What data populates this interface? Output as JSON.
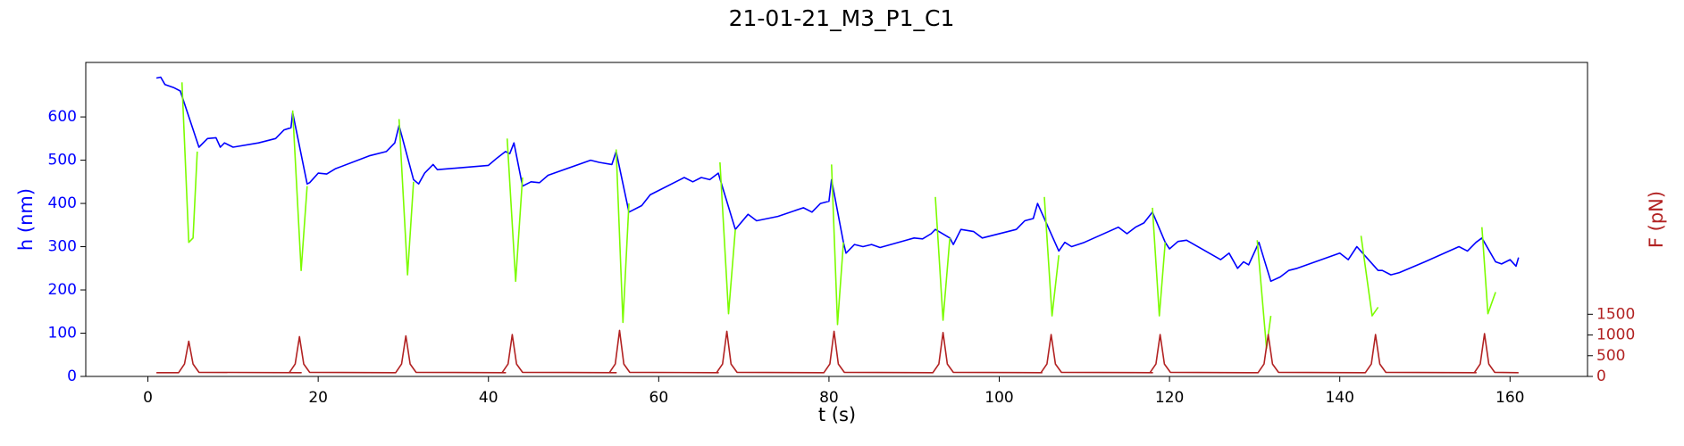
{
  "chart_data": {
    "type": "line",
    "title": "21-01-21_M3_P1_C1",
    "xlabel": "t (s)",
    "ylabel": "h (nm)",
    "y2label": "F (pN)",
    "xlim": [
      -7.3,
      169.1
    ],
    "xticks": [
      0,
      20,
      40,
      60,
      80,
      100,
      120,
      140,
      160
    ],
    "ylim": [
      0,
      726
    ],
    "yticks": [
      0,
      100,
      200,
      300,
      400,
      500,
      600
    ],
    "y2lim": [
      0,
      7577
    ],
    "y2ticks": [
      0,
      500,
      1000,
      1500
    ],
    "ycolor": "#0000ff",
    "y2color": "#b22222",
    "series": [
      {
        "color": "#0000ff",
        "x": [
          1,
          1.5,
          2,
          3,
          3.8,
          6,
          7,
          8,
          8.5,
          9,
          10,
          13,
          15,
          16,
          16.8,
          17,
          18.7,
          19,
          20,
          21,
          22,
          26,
          28,
          29,
          29.5,
          31.2,
          31.8,
          32.5,
          33.5,
          34,
          40,
          41,
          42,
          42.5,
          43,
          44,
          45,
          46,
          47,
          52,
          53,
          54.5,
          55,
          56.5,
          58,
          59,
          63,
          64,
          65,
          66,
          67,
          69,
          70.5,
          71.5,
          74,
          77,
          78,
          79,
          80,
          80.3,
          81.7,
          82,
          83,
          84,
          85,
          86,
          90,
          91,
          92,
          92.5,
          94.2,
          94.6,
          95.5,
          97,
          98,
          102,
          103,
          104,
          104.5,
          107,
          107.7,
          108.5,
          110,
          114,
          115,
          116,
          117,
          118,
          119.5,
          120,
          121,
          122,
          126,
          127,
          128,
          128.7,
          129.3,
          130.5,
          131.9,
          133,
          134,
          135,
          140,
          141,
          142,
          144.5,
          145,
          146,
          147,
          150,
          154,
          155,
          156,
          156.7,
          158.3,
          159,
          160,
          160.7,
          161
        ],
        "values": [
          690,
          692,
          675,
          668,
          660,
          530,
          550,
          552,
          530,
          540,
          530,
          540,
          550,
          570,
          575,
          610,
          445,
          448,
          470,
          468,
          480,
          510,
          520,
          540,
          580,
          455,
          445,
          470,
          490,
          478,
          488,
          505,
          520,
          515,
          540,
          440,
          450,
          448,
          465,
          500,
          495,
          490,
          520,
          380,
          395,
          420,
          460,
          450,
          460,
          455,
          470,
          340,
          375,
          360,
          370,
          390,
          380,
          400,
          405,
          455,
          310,
          285,
          305,
          300,
          305,
          298,
          320,
          318,
          330,
          340,
          320,
          305,
          340,
          335,
          320,
          340,
          360,
          365,
          400,
          290,
          310,
          300,
          310,
          345,
          330,
          345,
          355,
          380,
          310,
          295,
          312,
          315,
          270,
          285,
          250,
          265,
          258,
          310,
          220,
          230,
          245,
          250,
          285,
          270,
          300,
          245,
          245,
          235,
          240,
          265,
          300,
          290,
          310,
          320,
          265,
          260,
          270,
          255,
          275
        ]
      },
      {
        "color": "#7cfc00",
        "x": [
          4,
          4.8,
          5.3,
          5.8,
          null,
          17,
          18,
          18.7,
          null,
          29.5,
          30.5,
          31.2,
          null,
          42.2,
          43.2,
          44,
          null,
          55,
          55.8,
          56.5,
          null,
          67.2,
          68.2,
          69,
          null,
          80.3,
          81,
          81.7,
          null,
          92.5,
          93.4,
          94.2,
          null,
          105.3,
          106.2,
          107,
          null,
          118,
          118.8,
          119.5,
          null,
          130.3,
          131.4,
          131.9,
          null,
          142.5,
          143.8,
          144.5,
          null,
          156.7,
          157.4,
          158.3
        ],
        "values": [
          680,
          310,
          320,
          520,
          null,
          615,
          245,
          440,
          null,
          595,
          235,
          450,
          null,
          550,
          220,
          460,
          null,
          525,
          125,
          400,
          null,
          495,
          145,
          340,
          null,
          490,
          120,
          310,
          null,
          415,
          130,
          320,
          null,
          415,
          140,
          280,
          null,
          390,
          140,
          310,
          null,
          315,
          65,
          140,
          null,
          325,
          140,
          160,
          null,
          345,
          145,
          195
        ]
      },
      {
        "color": "#b22222",
        "axis": "y2",
        "x": [
          1,
          3.6,
          4.3,
          4.8,
          5.3,
          6,
          18,
          16.6,
          17.3,
          17.8,
          18.3,
          19,
          29,
          29.1,
          29.8,
          30.3,
          30.8,
          31.5,
          42,
          41.6,
          42.3,
          42.8,
          43.3,
          44,
          55,
          54.2,
          54.9,
          55.4,
          55.9,
          56.6,
          67,
          66.8,
          67.5,
          68,
          68.5,
          69.2,
          79,
          79.4,
          80.1,
          80.6,
          81.1,
          81.8,
          92,
          92.2,
          92.9,
          93.4,
          93.9,
          94.6,
          105,
          104.9,
          105.6,
          106.1,
          106.6,
          107.3,
          118,
          117.7,
          118.4,
          118.9,
          119.4,
          120.1,
          130,
          130.4,
          131.1,
          131.6,
          132.1,
          132.8,
          143,
          143,
          143.7,
          144.2,
          144.7,
          145.4,
          156,
          155.8,
          156.5,
          157,
          157.5,
          158.2,
          161
        ],
        "values": [
          90,
          90,
          300,
          850,
          300,
          100,
          90,
          90,
          300,
          960,
          300,
          100,
          90,
          90,
          300,
          980,
          300,
          100,
          90,
          90,
          300,
          1010,
          300,
          100,
          90,
          90,
          300,
          1110,
          300,
          100,
          90,
          90,
          300,
          1090,
          300,
          100,
          90,
          90,
          300,
          1090,
          300,
          100,
          90,
          90,
          300,
          1060,
          300,
          100,
          90,
          90,
          300,
          1010,
          300,
          100,
          90,
          90,
          300,
          1010,
          300,
          100,
          90,
          90,
          300,
          1010,
          300,
          100,
          90,
          90,
          300,
          1010,
          300,
          100,
          90,
          90,
          300,
          1030,
          300,
          100,
          90
        ]
      }
    ]
  }
}
